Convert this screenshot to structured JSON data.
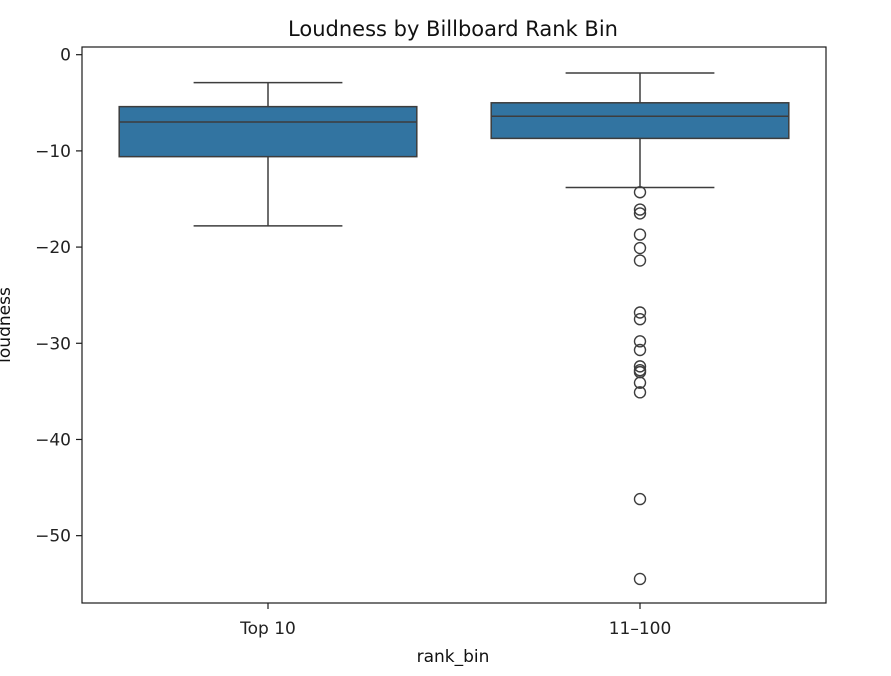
{
  "chart_data": {
    "type": "box",
    "title": "Loudness by Billboard Rank Bin",
    "xlabel": "rank_bin",
    "ylabel": "loudness",
    "categories": [
      "Top 10",
      "11–100"
    ],
    "ylim": [
      -57,
      0.8
    ],
    "yticks": [
      0,
      -10,
      -20,
      -30,
      -40,
      -50
    ],
    "ytick_labels": [
      "0",
      "−10",
      "−20",
      "−30",
      "−40",
      "−50"
    ],
    "grid": false,
    "legend": "none",
    "boxes": [
      {
        "category": "Top 10",
        "whisker_low": -17.8,
        "q1": -10.6,
        "median": -7.0,
        "q3": -5.4,
        "whisker_high": -2.9,
        "outliers": []
      },
      {
        "category": "11–100",
        "whisker_low": -13.8,
        "q1": -8.7,
        "median": -6.4,
        "q3": -5.0,
        "whisker_high": -1.9,
        "outliers": [
          -14.3,
          -16.1,
          -16.5,
          -18.7,
          -20.1,
          -21.4,
          -26.8,
          -27.5,
          -29.8,
          -30.7,
          -32.4,
          -32.8,
          -33.0,
          -34.1,
          -35.1,
          -46.2,
          -54.5
        ]
      }
    ],
    "colors": {
      "box_fill": "#3274a1",
      "line": "#3d3d3d"
    }
  }
}
